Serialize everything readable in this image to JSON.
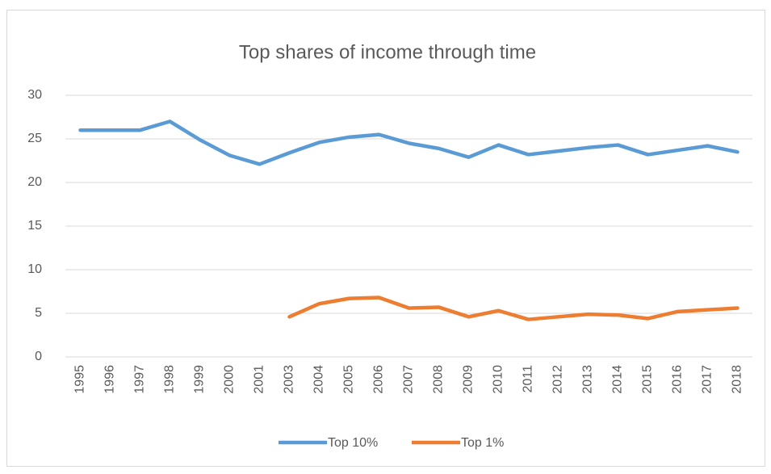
{
  "chart_data": {
    "type": "line",
    "title": "Top shares of income through time",
    "categories": [
      "1995",
      "1996",
      "1997",
      "1998",
      "1999",
      "2000",
      "2001",
      "2003",
      "2004",
      "2005",
      "2006",
      "2007",
      "2008",
      "2009",
      "2010",
      "2011",
      "2012",
      "2013",
      "2014",
      "2015",
      "2016",
      "2017",
      "2018"
    ],
    "series": [
      {
        "name": "Top 10%",
        "color": "#5b9bd5",
        "values": [
          26,
          26,
          26,
          27,
          24.9,
          23.1,
          22.1,
          23.4,
          24.6,
          25.2,
          25.5,
          24.5,
          23.9,
          22.9,
          24.3,
          23.2,
          23.6,
          24.0,
          24.3,
          23.2,
          23.7,
          24.2,
          23.5
        ]
      },
      {
        "name": "Top 1%",
        "color": "#ed7d31",
        "values": [
          null,
          null,
          null,
          null,
          null,
          null,
          null,
          4.6,
          6.1,
          6.7,
          6.8,
          5.6,
          5.7,
          4.6,
          5.3,
          4.3,
          4.6,
          4.9,
          4.8,
          4.4,
          5.2,
          5.4,
          5.6
        ]
      }
    ],
    "ylim": [
      0,
      30
    ],
    "yticks": [
      0,
      5,
      10,
      15,
      20,
      25,
      30
    ],
    "grid": true,
    "legend": "bottom"
  }
}
